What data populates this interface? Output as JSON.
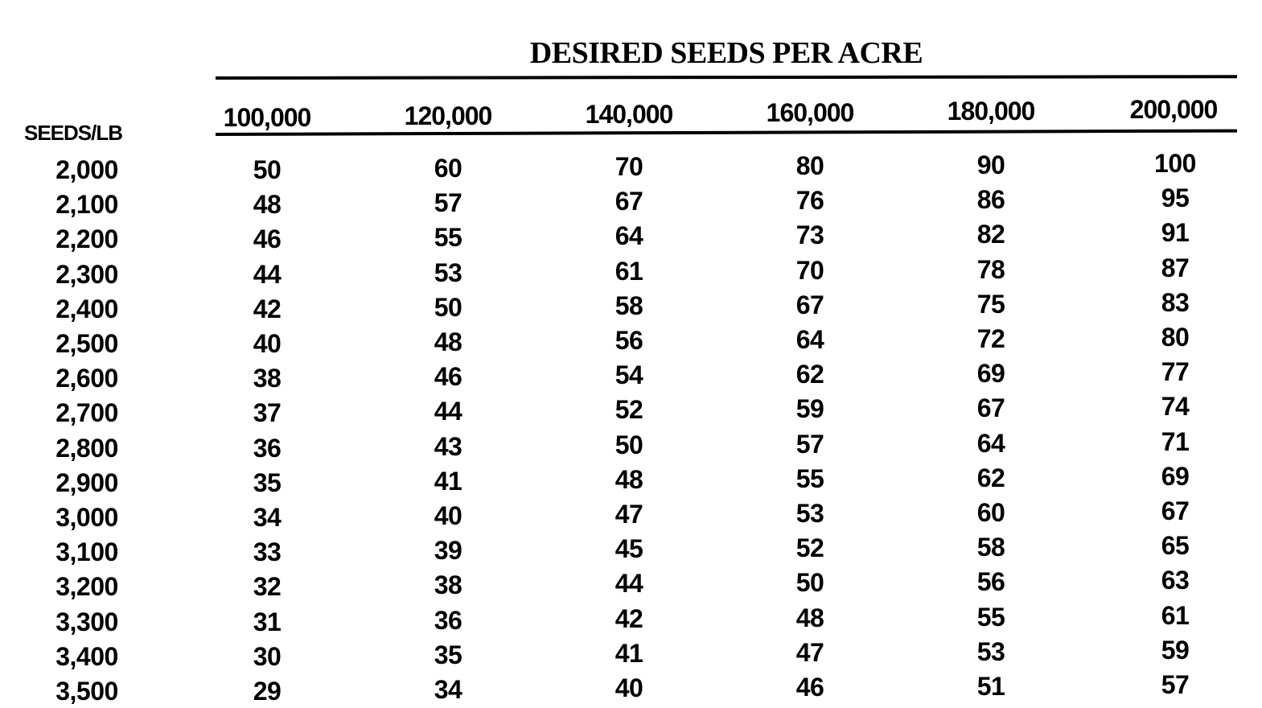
{
  "title": "DESIRED SEEDS PER ACRE",
  "row_header_label": "SEEDS/LB",
  "column_headers": [
    "100,000",
    "120,000",
    "140,000",
    "160,000",
    "180,000",
    "200,000"
  ],
  "rows": [
    {
      "seeds_per_lb": "2,000",
      "values": [
        "50",
        "60",
        "70",
        "80",
        "90",
        "100"
      ]
    },
    {
      "seeds_per_lb": "2,100",
      "values": [
        "48",
        "57",
        "67",
        "76",
        "86",
        "95"
      ]
    },
    {
      "seeds_per_lb": "2,200",
      "values": [
        "46",
        "55",
        "64",
        "73",
        "82",
        "91"
      ]
    },
    {
      "seeds_per_lb": "2,300",
      "values": [
        "44",
        "53",
        "61",
        "70",
        "78",
        "87"
      ]
    },
    {
      "seeds_per_lb": "2,400",
      "values": [
        "42",
        "50",
        "58",
        "67",
        "75",
        "83"
      ]
    },
    {
      "seeds_per_lb": "2,500",
      "values": [
        "40",
        "48",
        "56",
        "64",
        "72",
        "80"
      ]
    },
    {
      "seeds_per_lb": "2,600",
      "values": [
        "38",
        "46",
        "54",
        "62",
        "69",
        "77"
      ]
    },
    {
      "seeds_per_lb": "2,700",
      "values": [
        "37",
        "44",
        "52",
        "59",
        "67",
        "74"
      ]
    },
    {
      "seeds_per_lb": "2,800",
      "values": [
        "36",
        "43",
        "50",
        "57",
        "64",
        "71"
      ]
    },
    {
      "seeds_per_lb": "2,900",
      "values": [
        "35",
        "41",
        "48",
        "55",
        "62",
        "69"
      ]
    },
    {
      "seeds_per_lb": "3,000",
      "values": [
        "34",
        "40",
        "47",
        "53",
        "60",
        "67"
      ]
    },
    {
      "seeds_per_lb": "3,100",
      "values": [
        "33",
        "39",
        "45",
        "52",
        "58",
        "65"
      ]
    },
    {
      "seeds_per_lb": "3,200",
      "values": [
        "32",
        "38",
        "44",
        "50",
        "56",
        "63"
      ]
    },
    {
      "seeds_per_lb": "3,300",
      "values": [
        "31",
        "36",
        "42",
        "48",
        "55",
        "61"
      ]
    },
    {
      "seeds_per_lb": "3,400",
      "values": [
        "30",
        "35",
        "41",
        "47",
        "53",
        "59"
      ]
    },
    {
      "seeds_per_lb": "3,500",
      "values": [
        "29",
        "34",
        "40",
        "46",
        "51",
        "57"
      ]
    }
  ]
}
